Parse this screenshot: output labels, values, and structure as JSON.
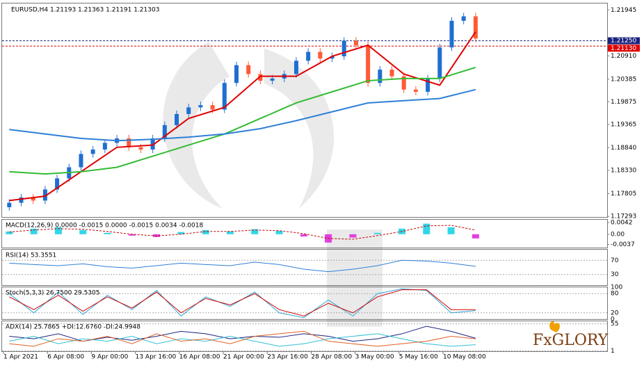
{
  "chart_data": [
    {
      "type": "candlestick",
      "title": "EURUSD,H4  1.21193 1.21363 1.21191 1.21303",
      "open": [
        1.175,
        1.176,
        1.1772,
        1.1765,
        1.179,
        1.1815,
        1.184,
        1.187,
        1.188,
        1.1895,
        1.1905,
        1.1885,
        1.188,
        1.1905,
        1.1935,
        1.196,
        1.1975,
        1.198,
        1.197,
        1.203,
        1.207,
        1.205,
        1.2035,
        1.204,
        1.205,
        1.208,
        1.21,
        1.2085,
        1.209,
        1.2125,
        1.2115,
        1.203,
        1.206,
        1.2045,
        1.2015,
        1.201,
        1.204,
        1.211,
        1.217,
        1.218
      ],
      "high": [
        1.1768,
        1.178,
        1.178,
        1.1798,
        1.1823,
        1.1848,
        1.1878,
        1.1888,
        1.1903,
        1.1913,
        1.1913,
        1.1893,
        1.1913,
        1.1943,
        1.1968,
        1.1983,
        1.1988,
        1.1988,
        1.2038,
        1.2078,
        1.2078,
        1.2058,
        1.2048,
        1.2058,
        1.2088,
        1.2108,
        1.2108,
        1.2098,
        1.2133,
        1.2133,
        1.2123,
        1.2068,
        1.2068,
        1.2053,
        1.2023,
        1.2048,
        1.2118,
        1.2178,
        1.2188,
        1.2188
      ],
      "low": [
        1.1742,
        1.1752,
        1.1757,
        1.1757,
        1.1782,
        1.1807,
        1.1832,
        1.1862,
        1.1872,
        1.1887,
        1.1877,
        1.1872,
        1.1872,
        1.1897,
        1.1927,
        1.1952,
        1.1967,
        1.1962,
        1.1962,
        1.2022,
        1.2042,
        1.2027,
        1.2027,
        1.2032,
        1.2042,
        1.2072,
        1.2077,
        1.2077,
        1.2082,
        1.2107,
        1.2022,
        1.2022,
        1.2037,
        1.2007,
        1.2002,
        1.2002,
        1.2032,
        1.2102,
        1.2162,
        1.2122
      ],
      "close": [
        1.176,
        1.1772,
        1.1765,
        1.179,
        1.1815,
        1.184,
        1.187,
        1.188,
        1.1895,
        1.1905,
        1.1885,
        1.188,
        1.1905,
        1.1935,
        1.196,
        1.1975,
        1.198,
        1.197,
        1.203,
        1.207,
        1.205,
        1.2035,
        1.204,
        1.205,
        1.208,
        1.21,
        1.2085,
        1.209,
        1.2125,
        1.2115,
        1.203,
        1.206,
        1.2045,
        1.2015,
        1.201,
        1.204,
        1.211,
        1.217,
        1.218,
        1.213
      ],
      "up_color": "#1f6fd0",
      "down_color": "#ff5a36",
      "series": [
        {
          "color": "#e00000",
          "x": [
            0,
            3,
            6,
            9,
            12,
            15,
            18,
            21,
            24,
            27,
            30,
            33,
            36,
            39
          ],
          "values": [
            1.1765,
            1.1775,
            1.183,
            1.1885,
            1.189,
            1.195,
            1.1975,
            1.2045,
            1.2045,
            1.209,
            1.2115,
            1.205,
            1.2025,
            1.2145
          ]
        },
        {
          "color": "#33bb33",
          "x": [
            0,
            3,
            6,
            9,
            12,
            15,
            18,
            21,
            24,
            27,
            30,
            33,
            36,
            39
          ],
          "values": [
            1.183,
            1.1825,
            1.183,
            1.184,
            1.1865,
            1.189,
            1.1915,
            1.195,
            1.1985,
            1.201,
            1.2035,
            1.204,
            1.204,
            1.2065
          ]
        },
        {
          "color": "#2f7fd6",
          "x": [
            0,
            3,
            6,
            9,
            12,
            15,
            18,
            21,
            24,
            27,
            30,
            33,
            36,
            39
          ],
          "values": [
            1.1925,
            1.1915,
            1.1905,
            1.19,
            1.1903,
            1.1908,
            1.1915,
            1.1927,
            1.1945,
            1.1965,
            1.1985,
            1.199,
            1.1995,
            1.2015
          ]
        }
      ],
      "levels": [
        {
          "value": 1.2125,
          "label": "1.21250",
          "color": "#1a237e"
        },
        {
          "value": 1.2113,
          "label": "1.21130",
          "color": "#e00000"
        }
      ],
      "xlim": [
        -0.6,
        50
      ],
      "ylim": [
        1.1728,
        1.2209
      ],
      "yticks": [
        {
          "value": 1.21945,
          "label": "1.21945"
        },
        {
          "value": 1.2091,
          "label": "1.20910"
        },
        {
          "value": 1.20385,
          "label": "1.20385"
        },
        {
          "value": 1.19875,
          "label": "1.19875"
        },
        {
          "value": 1.19365,
          "label": "1.19365"
        },
        {
          "value": 1.1884,
          "label": "1.18840"
        },
        {
          "value": 1.1833,
          "label": "1.18330"
        },
        {
          "value": 1.17805,
          "label": "1.17805"
        },
        {
          "value": 1.17293,
          "label": "1.17293"
        }
      ],
      "x_labels": [
        "1 Apr 2021",
        "6 Apr 08:00",
        "9 Apr 00:00",
        "13 Apr 16:00",
        "16 Apr 08:00",
        "21 Apr 00:00",
        "23 Apr 16:00",
        "28 Apr 08:00",
        "3 May 00:00",
        "5 May 16:00",
        "10 May 08:00"
      ],
      "brand": "FxGLORY"
    },
    {
      "type": "macd",
      "title": "MACD(12,26,9) 0.0000 -0.0015 0.0000 -0.0015 0.0034 -0.0018",
      "values": [
        0.001,
        0.002,
        0.0025,
        0.0015,
        0.0005,
        -0.0005,
        -0.001,
        0.0008,
        0.0015,
        0.001,
        0.0018,
        0.0012,
        -0.0008,
        -0.003,
        -0.0012,
        0.0005,
        0.002,
        0.0038,
        0.0025,
        -0.0015
      ],
      "pos_color": "#33d6e8",
      "neg_color": "#e040e0",
      "series": [
        {
          "color": "#c00000",
          "values": [
            0.0008,
            0.0015,
            0.002,
            0.0018,
            0.001,
            0.0,
            -0.0006,
            0.0,
            0.001,
            0.001,
            0.0015,
            0.0013,
            0.0002,
            -0.0015,
            -0.0018,
            -0.0005,
            0.001,
            0.003,
            0.0032,
            0.0015
          ]
        }
      ],
      "ylim": [
        -0.0048,
        0.0052
      ],
      "yticks": [
        0.0042,
        {
          "value": 0,
          "label": "0.00"
        },
        -0.0037
      ]
    },
    {
      "type": "line",
      "title": "RSI(14) 53.3551",
      "series": [
        {
          "color": "#2f7fd6",
          "values": [
            62,
            58,
            55,
            60,
            52,
            48,
            55,
            62,
            58,
            55,
            65,
            58,
            45,
            38,
            45,
            55,
            70,
            68,
            62,
            53
          ]
        }
      ],
      "ylim": [
        0,
        100
      ],
      "yticks": [
        70,
        30
      ]
    },
    {
      "type": "line",
      "title": "Stoch(5,3,3) 26.7500 29.5305",
      "series": [
        {
          "color": "#2fa8d6",
          "values": [
            80,
            20,
            85,
            15,
            75,
            30,
            90,
            10,
            70,
            40,
            85,
            20,
            5,
            60,
            10,
            80,
            95,
            90,
            20,
            27
          ]
        },
        {
          "color": "#d00000",
          "values": [
            70,
            30,
            75,
            25,
            70,
            35,
            85,
            20,
            65,
            45,
            80,
            30,
            10,
            50,
            20,
            70,
            92,
            92,
            30,
            30
          ]
        }
      ],
      "ylim": [
        0,
        100
      ],
      "yticks": [
        100,
        80,
        20,
        0
      ]
    },
    {
      "type": "line",
      "title": "ADX(14) 25.7865 +DI:12.6760 -DI:24.9948",
      "series": [
        {
          "color": "#1a237e",
          "values": [
            30,
            25,
            35,
            20,
            28,
            22,
            30,
            40,
            35,
            25,
            30,
            28,
            35,
            30,
            20,
            25,
            35,
            50,
            40,
            26
          ]
        },
        {
          "color": "#2fc0d6",
          "values": [
            20,
            30,
            15,
            25,
            20,
            30,
            15,
            25,
            20,
            30,
            20,
            10,
            15,
            25,
            30,
            35,
            25,
            15,
            10,
            13
          ]
        },
        {
          "color": "#e06020",
          "values": [
            15,
            10,
            25,
            20,
            30,
            15,
            35,
            20,
            25,
            15,
            30,
            35,
            40,
            20,
            15,
            10,
            15,
            20,
            30,
            25
          ]
        }
      ],
      "ylim": [
        0,
        60
      ],
      "yticks": [
        55,
        1
      ]
    }
  ]
}
